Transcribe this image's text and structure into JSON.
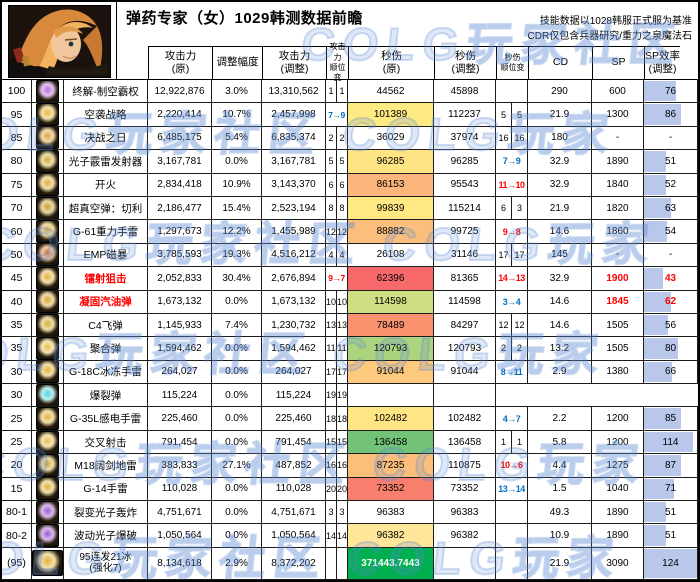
{
  "watermark": {
    "text": "COLG玩家社区 COLG玩家",
    "color": "#5f8cd7"
  },
  "header": {
    "title": "弹药专家（女）1029韩测数据前瞻",
    "note1": "技能数据以1028韩服正式服为基准",
    "note2": "CDR仅包含兵器研究/重力之泉魔法石",
    "columns": [
      {
        "l1": "攻击力",
        "l2": "(原)",
        "cls": "c-atk",
        "small": false
      },
      {
        "l1": "调整幅度",
        "l2": "",
        "cls": "c-pct",
        "small": false
      },
      {
        "l1": "攻击力",
        "l2": "(调整)",
        "cls": "c-atk2",
        "small": false
      },
      {
        "l1": "攻击力",
        "l2": "顺位变",
        "cls": "c-ra2",
        "small": true
      },
      {
        "l1": "秒伤",
        "l2": "(原)",
        "cls": "c-dps",
        "small": false
      },
      {
        "l1": "秒伤",
        "l2": "(调整)",
        "cls": "c-dps2",
        "small": false
      },
      {
        "l1": "秒伤",
        "l2": "顺位变",
        "cls": "c-rb2",
        "small": true
      },
      {
        "l1": "CD",
        "l2": "",
        "cls": "c-cd",
        "small": false
      },
      {
        "l1": "SP",
        "l2": "",
        "cls": "c-sp",
        "small": false
      },
      {
        "l1": "SP效率",
        "l2": "(调整)",
        "cls": "c-spe",
        "small": false
      }
    ]
  },
  "colors": {
    "rank_up_red": "#FF0000",
    "rank_down_blue": "#0070C0",
    "databar": "#b9c7ea",
    "total_green": "#00B050"
  },
  "table": {
    "rows": [
      {
        "level": "100",
        "name": "终解-制空霸权",
        "icon_color": "#b86fe0",
        "atk_orig": "12,922,876",
        "adj_pct": "3.0%",
        "atk_adj": "13,310,562",
        "atk_rank": {
          "t": "pair",
          "a": "1",
          "b": "1"
        },
        "dps_orig": "44562",
        "dps_bg": "",
        "dps_adj": "45898",
        "dps_rank": {
          "t": "blank"
        },
        "cd": "290",
        "sp": "600",
        "spe": "76",
        "spe_bar": 61
      },
      {
        "level": "95",
        "name": "空袭战略",
        "icon_color": "#e6b83c",
        "atk_orig": "2,220,414",
        "adj_pct": "10.7%",
        "atk_adj": "2,457,998",
        "atk_rank": {
          "t": "chg",
          "v": "7→9",
          "c": "#0070C0"
        },
        "dps_orig": "101389",
        "dps_bg": "#FFEB84",
        "dps_adj": "112237",
        "dps_rank": {
          "t": "pair",
          "a": "5",
          "b": "5"
        },
        "cd": "21.9",
        "sp": "1300",
        "spe": "86",
        "spe_bar": 69
      },
      {
        "level": "85",
        "name": "决战之日",
        "icon_color": "#e0a53a",
        "atk_orig": "6,485,175",
        "adj_pct": "5.4%",
        "atk_adj": "6,835,374",
        "atk_rank": {
          "t": "pair",
          "a": "2",
          "b": "2"
        },
        "dps_orig": "36029",
        "dps_bg": "",
        "dps_adj": "37974",
        "dps_rank": {
          "t": "pair",
          "a": "16",
          "b": "16"
        },
        "cd": "180",
        "sp": "-",
        "spe": "-",
        "spe_bar": null
      },
      {
        "level": "80",
        "name": "光子霰雷发射器",
        "icon_color": "#d4af37",
        "atk_orig": "3,167,781",
        "adj_pct": "0.0%",
        "atk_adj": "3,167,781",
        "atk_rank": {
          "t": "pair",
          "a": "5",
          "b": "5"
        },
        "dps_orig": "96285",
        "dps_bg": "#FFE483",
        "dps_adj": "96285",
        "dps_rank": {
          "t": "chg",
          "v": "7→9",
          "c": "#0070C0"
        },
        "cd": "32.9",
        "sp": "1890",
        "spe": "51",
        "spe_bar": 41
      },
      {
        "level": "75",
        "name": "开火",
        "icon_color": "#e0b03c",
        "atk_orig": "2,834,418",
        "adj_pct": "10.9%",
        "atk_adj": "3,143,370",
        "atk_rank": {
          "t": "pair",
          "a": "6",
          "b": "6"
        },
        "dps_orig": "86153",
        "dps_bg": "#FCB57A",
        "dps_adj": "95543",
        "dps_rank": {
          "t": "chg",
          "v": "11→10",
          "c": "#FF0000"
        },
        "cd": "32.9",
        "sp": "1840",
        "spe": "52",
        "spe_bar": 42
      },
      {
        "level": "70",
        "name": "超真空弹：切利",
        "icon_color": "#c8a22e",
        "atk_orig": "2,186,477",
        "adj_pct": "15.4%",
        "atk_adj": "2,523,194",
        "atk_rank": {
          "t": "pair",
          "a": "8",
          "b": "8"
        },
        "dps_orig": "99839",
        "dps_bg": "#FFE984",
        "dps_adj": "115214",
        "dps_rank": {
          "t": "pair",
          "a": "6",
          "b": "3"
        },
        "cd": "21.9",
        "sp": "1820",
        "spe": "63",
        "spe_bar": 51
      },
      {
        "level": "60",
        "name": "G-61重力手雷",
        "icon_color": "#e3b33c",
        "atk_orig": "1,297,673",
        "adj_pct": "12.2%",
        "atk_adj": "1,455,989",
        "atk_rank": {
          "t": "pair",
          "a": "12",
          "b": "12"
        },
        "dps_orig": "88882",
        "dps_bg": "#FCBE7C",
        "dps_adj": "99725",
        "dps_rank": {
          "t": "chg",
          "v": "9→8",
          "c": "#FF0000"
        },
        "cd": "14.6",
        "sp": "1860",
        "spe": "54",
        "spe_bar": 44
      },
      {
        "level": "50",
        "name": "EMP磁暴",
        "icon_color": "#e07a28",
        "atk_orig": "3,785,593",
        "adj_pct": "19.3%",
        "atk_adj": "4,516,212",
        "atk_rank": {
          "t": "pair",
          "a": "4",
          "b": "4"
        },
        "dps_orig": "26108",
        "dps_bg": "",
        "dps_adj": "31146",
        "dps_rank": {
          "t": "pair",
          "a": "17",
          "b": "17"
        },
        "cd": "145",
        "sp": "-",
        "spe": "-",
        "spe_bar": null
      },
      {
        "level": "45",
        "name": "镭射狙击",
        "name_color": "#FF0000",
        "icon_color": "#e3b33c",
        "atk_orig": "2,052,833",
        "adj_pct": "30.4%",
        "atk_adj": "2,676,894",
        "atk_rank": {
          "t": "chg",
          "v": "9→7",
          "c": "#FF0000"
        },
        "dps_orig": "62396",
        "dps_bg": "#F8696B",
        "dps_adj": "81365",
        "dps_rank": {
          "t": "chg",
          "v": "14→13",
          "c": "#FF0000"
        },
        "cd": "32.9",
        "sp": "1900",
        "sp_color": "#FF0000",
        "spe": "43",
        "spe_color": "#FF0000",
        "spe_bar": 35
      },
      {
        "level": "40",
        "name": "凝固汽油弹",
        "name_color": "#FF0000",
        "icon_color": "#d9a832",
        "atk_orig": "1,673,132",
        "adj_pct": "0.0%",
        "atk_adj": "1,673,132",
        "atk_rank": {
          "t": "pair",
          "a": "10",
          "b": "10"
        },
        "dps_orig": "114598",
        "dps_bg": "#CFDE82",
        "dps_adj": "114598",
        "dps_rank": {
          "t": "chg",
          "v": "3→4",
          "c": "#0070C0"
        },
        "cd": "14.6",
        "sp": "1845",
        "sp_color": "#FF0000",
        "spe": "62",
        "spe_color": "#FF0000",
        "spe_bar": 50
      },
      {
        "level": "35",
        "name": "C4飞弹",
        "icon_color": "#d4af37",
        "atk_orig": "1,145,933",
        "adj_pct": "7.4%",
        "atk_adj": "1,230,732",
        "atk_rank": {
          "t": "pair",
          "a": "13",
          "b": "13"
        },
        "dps_orig": "78489",
        "dps_bg": "#F9936F",
        "dps_adj": "84297",
        "dps_rank": {
          "t": "pair",
          "a": "12",
          "b": "12"
        },
        "cd": "14.6",
        "sp": "1505",
        "spe": "56",
        "spe_bar": 45
      },
      {
        "level": "35",
        "name": "聚合弹",
        "icon_color": "#e8c050",
        "atk_orig": "1,594,462",
        "adj_pct": "0.0%",
        "atk_adj": "1,594,462",
        "atk_rank": {
          "t": "pair",
          "a": "11",
          "b": "11"
        },
        "dps_orig": "120793",
        "dps_bg": "#ACD47F",
        "dps_adj": "120793",
        "dps_rank": {
          "t": "pair",
          "a": "2",
          "b": "2"
        },
        "cd": "13.2",
        "sp": "1505",
        "spe": "80",
        "spe_bar": 65
      },
      {
        "level": "30",
        "name": "G-18C冰冻手雷",
        "icon_color": "#e3b33c",
        "atk_orig": "264,027",
        "adj_pct": "0.0%",
        "atk_adj": "264,027",
        "atk_rank": {
          "t": "pair",
          "a": "17",
          "b": "17"
        },
        "dps_orig": "91044",
        "dps_bg": "#FDC97D",
        "dps_adj": "91044",
        "dps_rank": {
          "t": "chg",
          "v": "8→11",
          "c": "#0070C0"
        },
        "cd": "2.9",
        "sp": "1380",
        "spe": "66",
        "spe_bar": 53
      },
      {
        "level": "30",
        "name": "爆裂弹",
        "icon_color": "#5ad4e0",
        "atk_orig": "115,224",
        "adj_pct": "0.0%",
        "atk_adj": "115,224",
        "atk_rank": {
          "t": "pair",
          "a": "19",
          "b": "19"
        },
        "tail_blank": true
      },
      {
        "level": "25",
        "name": "G-35L感电手雷",
        "icon_color": "#e3b33c",
        "atk_orig": "225,460",
        "adj_pct": "0.0%",
        "atk_adj": "225,460",
        "atk_rank": {
          "t": "pair",
          "a": "18",
          "b": "18"
        },
        "dps_orig": "102482",
        "dps_bg": "#FFE584",
        "dps_adj": "102482",
        "dps_rank": {
          "t": "chg",
          "v": "4→7",
          "c": "#0070C0"
        },
        "cd": "2.2",
        "sp": "1200",
        "spe": "85",
        "spe_bar": 69
      },
      {
        "level": "25",
        "name": "交叉射击",
        "icon_color": "#e8c050",
        "atk_orig": "791,454",
        "adj_pct": "0.0%",
        "atk_adj": "791,454",
        "atk_rank": {
          "t": "pair",
          "a": "15",
          "b": "15"
        },
        "dps_orig": "136458",
        "dps_bg": "#72C377",
        "dps_adj": "136458",
        "dps_rank": {
          "t": "pair",
          "a": "1",
          "b": "1"
        },
        "cd": "5.8",
        "sp": "1200",
        "spe": "114",
        "spe_bar": 92
      },
      {
        "level": "20",
        "name": "M18阔剑地雷",
        "icon_color": "#d4af37",
        "atk_orig": "383,833",
        "adj_pct": "27.1%",
        "atk_adj": "487,852",
        "atk_rank": {
          "t": "pair",
          "a": "16",
          "b": "16"
        },
        "dps_orig": "87235",
        "dps_bg": "#FCBF7B",
        "dps_adj": "110875",
        "dps_rank": {
          "t": "chg",
          "v": "10→6",
          "c": "#FF0000"
        },
        "cd": "4.4",
        "sp": "1275",
        "spe": "87",
        "spe_bar": 70
      },
      {
        "level": "15",
        "name": "G-14手雷",
        "icon_color": "#e3b33c",
        "atk_orig": "110,028",
        "adj_pct": "0.0%",
        "atk_adj": "110,028",
        "atk_rank": {
          "t": "pair",
          "a": "20",
          "b": "20"
        },
        "dps_orig": "73352",
        "dps_bg": "#F87E6D",
        "dps_adj": "73352",
        "dps_rank": {
          "t": "chg",
          "v": "13→14",
          "c": "#0070C0"
        },
        "cd": "1.5",
        "sp": "1040",
        "spe": "71",
        "spe_bar": 57
      },
      {
        "level": "80-1",
        "name": "裂变光子轰炸",
        "icon_color": "#a05ad0",
        "atk_orig": "4,751,671",
        "adj_pct": "0.0%",
        "atk_adj": "4,751,671",
        "atk_rank": {
          "t": "pair",
          "a": "3",
          "b": "3"
        },
        "dps_orig": "96383",
        "dps_bg": "",
        "dps_adj": "96383",
        "dps_rank": {
          "t": "blank"
        },
        "cd": "49.3",
        "sp": "1890",
        "spe": "51",
        "spe_bar": 41
      },
      {
        "level": "80-2",
        "name": "波动光子爆破",
        "icon_color": "#a05ad0",
        "atk_orig": "1,050,564",
        "adj_pct": "0.0%",
        "atk_adj": "1,050,564",
        "atk_rank": {
          "t": "pair",
          "a": "14",
          "b": "14"
        },
        "dps_orig": "96382",
        "dps_bg": "#FFE699",
        "dps_adj": "96382",
        "dps_rank": {
          "t": "blank"
        },
        "cd": "10.9",
        "sp": "1890",
        "spe": "51",
        "spe_bar": 41
      },
      {
        "level": "(95)",
        "name": "95连发21冰",
        "name2": "(强化7)",
        "icon_color": "#e3b33c",
        "icon_wide": true,
        "atk_orig": "8,134,618",
        "adj_pct": "2.9%",
        "atk_adj": "8,372,202",
        "atk_rank": {
          "t": "pair",
          "a": "",
          "b": ""
        },
        "dps_orig": "371443.7443",
        "dps_bg": "#00B050",
        "dps_fg": "#FFFFFF",
        "dps_adj": "",
        "dps_rank": {
          "t": "blank"
        },
        "cd": "21.9",
        "sp": "3090",
        "spe": "124",
        "spe_bar": 100
      }
    ]
  }
}
